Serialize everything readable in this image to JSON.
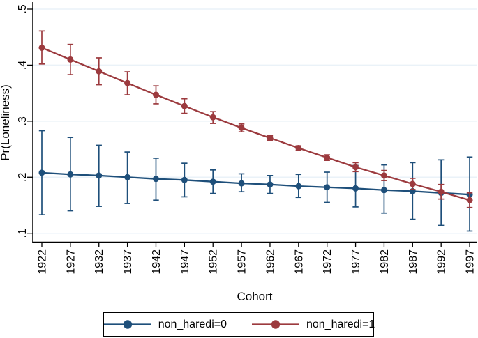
{
  "chart_data": {
    "type": "line",
    "title": "",
    "xlabel": "Cohort",
    "ylabel": "Pr(Loneliness)",
    "x": [
      1922,
      1927,
      1932,
      1937,
      1942,
      1947,
      1952,
      1957,
      1962,
      1967,
      1972,
      1977,
      1982,
      1987,
      1992,
      1997
    ],
    "xtick_labels": [
      "1922",
      "1927",
      "1932",
      "1937",
      "1942",
      "1947",
      "1952",
      "1957",
      "1962",
      "1967",
      "1972",
      "1977",
      "1982",
      "1987",
      "1992",
      "1997"
    ],
    "ylim": [
      0.1,
      0.5
    ],
    "yticks": [
      0.1,
      0.2,
      0.3,
      0.4,
      0.5
    ],
    "ytick_labels": [
      ".1",
      ".2",
      ".3",
      ".4",
      ".5"
    ],
    "grid": true,
    "legend_position": "bottom",
    "error_bars": true,
    "series": [
      {
        "name": "non_haredi=0",
        "color": "#1e4f7a",
        "marker": "circle",
        "values": [
          0.208,
          0.205,
          0.203,
          0.2,
          0.197,
          0.195,
          0.192,
          0.189,
          0.187,
          0.184,
          0.182,
          0.18,
          0.177,
          0.175,
          0.172,
          0.169
        ],
        "ci_low": [
          0.133,
          0.14,
          0.148,
          0.153,
          0.159,
          0.165,
          0.171,
          0.174,
          0.171,
          0.164,
          0.155,
          0.147,
          0.136,
          0.125,
          0.114,
          0.104
        ],
        "ci_high": [
          0.283,
          0.271,
          0.257,
          0.245,
          0.234,
          0.225,
          0.213,
          0.206,
          0.203,
          0.205,
          0.209,
          0.221,
          0.222,
          0.226,
          0.231,
          0.236
        ]
      },
      {
        "name": "non_haredi=1",
        "color": "#9c3a3e",
        "marker": "circle",
        "values": [
          0.431,
          0.41,
          0.389,
          0.368,
          0.347,
          0.327,
          0.307,
          0.288,
          0.27,
          0.252,
          0.235,
          0.218,
          0.203,
          0.188,
          0.174,
          0.159
        ],
        "ci_low": [
          0.402,
          0.383,
          0.365,
          0.347,
          0.331,
          0.314,
          0.296,
          0.281,
          0.266,
          0.248,
          0.23,
          0.21,
          0.194,
          0.178,
          0.161,
          0.146
        ],
        "ci_high": [
          0.461,
          0.437,
          0.413,
          0.388,
          0.363,
          0.34,
          0.317,
          0.295,
          0.274,
          0.256,
          0.24,
          0.226,
          0.212,
          0.198,
          0.187,
          0.172
        ]
      }
    ],
    "colors": {
      "grid": "#eaf2f8",
      "axis": "#000000",
      "background": "#ffffff"
    }
  }
}
